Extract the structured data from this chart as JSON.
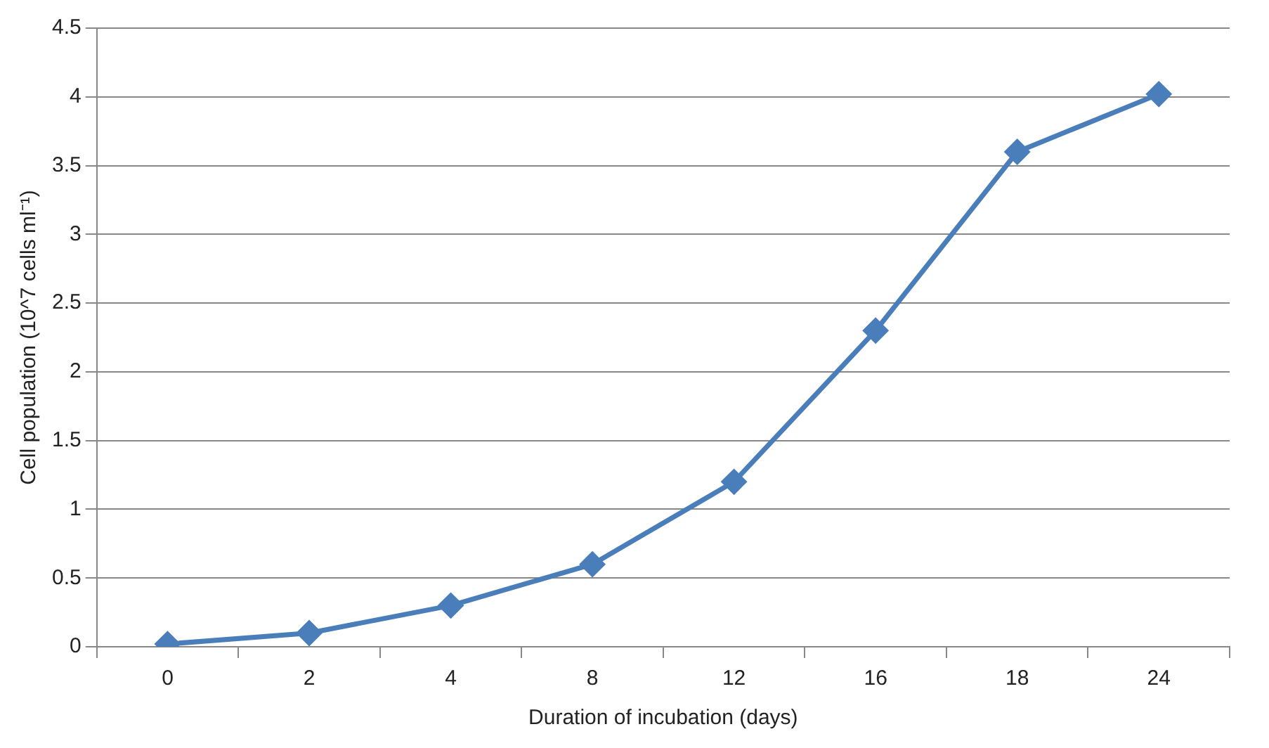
{
  "chart_data": {
    "type": "line",
    "xlabel": "Duration of incubation (days)",
    "ylabel": "Cell population (10^7 cells ml⁻¹)",
    "categories": [
      "0",
      "2",
      "4",
      "8",
      "12",
      "16",
      "18",
      "24"
    ],
    "series": [
      {
        "color": "#4a7ebb",
        "values": [
          0.02,
          0.1,
          0.3,
          0.6,
          1.2,
          2.3,
          3.6,
          4.02
        ]
      }
    ],
    "ylim": [
      0,
      4.5
    ],
    "yticks": [
      0,
      0.5,
      1,
      1.5,
      2,
      2.5,
      3,
      3.5,
      4,
      4.5
    ],
    "grid": "y",
    "legend": false,
    "marker": "diamond",
    "line_style": "solid"
  }
}
